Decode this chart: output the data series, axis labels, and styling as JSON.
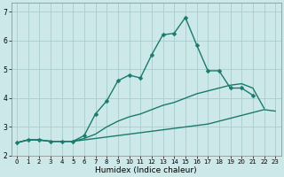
{
  "title": "",
  "xlabel": "Humidex (Indice chaleur)",
  "ylabel": "",
  "xlim": [
    -0.5,
    23.5
  ],
  "ylim": [
    2,
    7.3
  ],
  "yticks": [
    2,
    3,
    4,
    5,
    6,
    7
  ],
  "xticks": [
    0,
    1,
    2,
    3,
    4,
    5,
    6,
    7,
    8,
    9,
    10,
    11,
    12,
    13,
    14,
    15,
    16,
    17,
    18,
    19,
    20,
    21,
    22,
    23
  ],
  "bg_color": "#cce8e8",
  "grid_color": "#aacccc",
  "line_color": "#1a7a6e",
  "line_width": 1.0,
  "marker": "D",
  "marker_size": 2.5,
  "series": [
    {
      "x": [
        0,
        1,
        2,
        3,
        4,
        5,
        6,
        7,
        8,
        9,
        10,
        11,
        12,
        13,
        14,
        15,
        16,
        17,
        18,
        19,
        20,
        21
      ],
      "y": [
        2.45,
        2.55,
        2.55,
        2.5,
        2.5,
        2.5,
        2.7,
        3.45,
        3.9,
        4.6,
        4.8,
        4.7,
        5.5,
        6.2,
        6.25,
        6.8,
        5.85,
        4.95,
        4.95,
        4.35,
        4.35,
        4.1
      ],
      "has_markers": true
    },
    {
      "x": [
        0,
        1,
        2,
        3,
        4,
        5,
        6,
        7,
        8,
        9,
        10,
        11,
        12,
        13,
        14,
        15,
        16,
        17,
        18,
        19,
        20,
        21,
        22
      ],
      "y": [
        2.45,
        2.55,
        2.55,
        2.5,
        2.5,
        2.5,
        2.6,
        2.75,
        3.0,
        3.2,
        3.35,
        3.45,
        3.6,
        3.75,
        3.85,
        4.0,
        4.15,
        4.25,
        4.35,
        4.45,
        4.5,
        4.35,
        3.65
      ],
      "has_markers": false
    },
    {
      "x": [
        0,
        1,
        2,
        3,
        4,
        5,
        6,
        7,
        8,
        9,
        10,
        11,
        12,
        13,
        14,
        15,
        16,
        17,
        18,
        19,
        20,
        21,
        22,
        23
      ],
      "y": [
        2.45,
        2.55,
        2.55,
        2.5,
        2.5,
        2.5,
        2.55,
        2.6,
        2.65,
        2.7,
        2.75,
        2.8,
        2.85,
        2.9,
        2.95,
        3.0,
        3.05,
        3.1,
        3.2,
        3.3,
        3.4,
        3.5,
        3.6,
        3.55
      ],
      "has_markers": false
    }
  ]
}
